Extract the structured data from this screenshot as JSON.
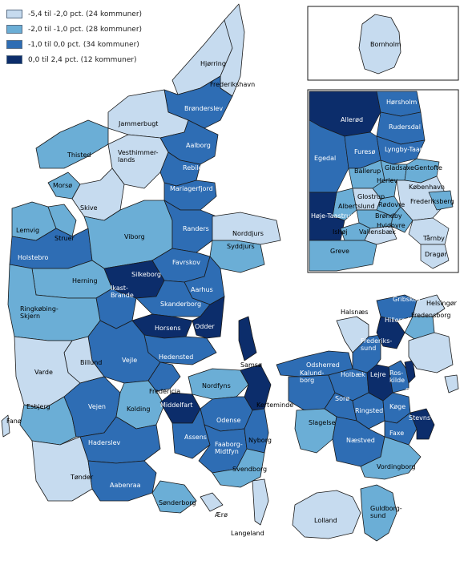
{
  "legend": [
    {
      "label": "-5,4 til -2,0 pct. (24 kommuner)",
      "color": "#c6dbef"
    },
    {
      "label": "-2,0 til -1,0 pct. (28 kommuner)",
      "color": "#6baed6"
    },
    {
      "label": "-1,0 til 0,0 pct. (34 kommuner)",
      "color": "#2e6db4"
    },
    {
      "label": "0,0 til 2,4 pct. (12 kommuner)",
      "color": "#0c2d6b"
    }
  ],
  "colors": {
    "c1": "#c6dbef",
    "c2": "#6baed6",
    "c3": "#2e6db4",
    "c4": "#0c2d6b",
    "border": "#1a1a1a"
  },
  "labels": {
    "bornholm": "Bornholm",
    "hjorring": "Hjørring",
    "frederikshavn": "Frederikshavn",
    "bronderslev": "Brønderslev",
    "jammerbugt": "Jammerbugt",
    "aalborg": "Aalborg",
    "thisted": "Thisted",
    "rebild": "Rebild",
    "vesthimmerlands": "Vesthimmer-\nlands",
    "mors": "Morsø",
    "mariagerfjord": "Mariagerfjord",
    "skive": "Skive",
    "lemvig": "Lemvig",
    "struer": "Struer",
    "viborg": "Viborg",
    "randers": "Randers",
    "norddjurs": "Norddjurs",
    "holstebro": "Holstebro",
    "syddjurs": "Syddjurs",
    "favrskov": "Favrskov",
    "herning": "Herning",
    "silkeborg": "Silkeborg",
    "ikast": "Ikast-\nBrande",
    "aarhus": "Aarhus",
    "ringkobing": "Ringkøbing-\nSkjern",
    "skanderborg": "Skanderborg",
    "horsens": "Horsens",
    "odder": "Odder",
    "samso": "Samsø",
    "hedensted": "Hedensted",
    "vejle": "Vejle",
    "billund": "Billund",
    "varde": "Varde",
    "fredericia": "Fredericia",
    "esbjerg": "Esbjerg",
    "vejen": "Vejen",
    "kolding": "Kolding",
    "nordfyns": "Nordfyns",
    "kerteminde": "Kerteminde",
    "middelfart": "Middelfart",
    "odense": "Odense",
    "fano": "Fanø",
    "haderslev": "Haderslev",
    "assens": "Assens",
    "faaborg": "Faaborg-\nMidtfyn",
    "nyborg": "Nyborg",
    "tonder": "Tønder",
    "svendborg": "Svendborg",
    "aabenraa": "Aabenraa",
    "sonderborg": "Sønderborg",
    "aero": "Ærø",
    "langeland": "Langeland",
    "lolland": "Lolland",
    "guldborgsund": "Guldborg-\nsund",
    "vordingborg": "Vordingborg",
    "naestved": "Næstved",
    "faxe": "Faxe",
    "stevns": "Stevns",
    "koge": "Køge",
    "ringsted": "Ringsted",
    "slagelse": "Slagelse",
    "soro": "Sorø",
    "kalundborg": "Kalund-\nborg",
    "holbaek": "Holbæk",
    "odsherred": "Odsherred",
    "lejre": "Lejre",
    "roskilde": "Ros-\nkilde",
    "solrod": "Solrød",
    "frederikssund": "Frederiks-\nsund",
    "halsnaes": "Halsnæs",
    "gribskov": "Gribskov",
    "helsingor": "Helsingør",
    "hillerod": "Hillerød",
    "fredensborg": "Fredensborg",
    "i_horsholm": "Hørsholm",
    "i_allerod": "Allerød",
    "i_rudersdal": "Rudersdal",
    "i_egedal": "Egedal",
    "i_furesø": "Furesø",
    "i_lyngby": "Lyngby-Taarbæk",
    "i_gladsaxe": "Gladsaxe",
    "i_gentofte": "Gentofte",
    "i_ballerup": "Ballerup",
    "i_herlev": "Herlev",
    "i_kobenhavn": "København",
    "i_frederiksberg": "Frederiksberg",
    "i_glostrup": "Glostrup",
    "i_rodovre": "Rødovre",
    "i_albertslund": "Albertslund",
    "i_brondby": "Brøndby",
    "i_hvidovre": "Hvidovre",
    "i_hoje": "Høje-Taastrup",
    "i_ishoj": "Ishøj",
    "i_vallensbaek": "Vallensbæk",
    "i_tarnby": "Tårnby",
    "i_greve": "Greve",
    "i_dragor": "Dragør"
  }
}
